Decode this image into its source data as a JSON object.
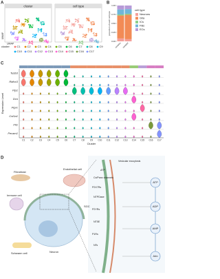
{
  "panel_a": {
    "label": "A",
    "titles": [
      "cluster",
      "cell type"
    ],
    "y_axis": "UMAP",
    "x_axis": "UMAP",
    "legend_title": "cluster",
    "clusters": [
      "C1",
      "C2",
      "C3",
      "C4",
      "C5",
      "C6",
      "C7",
      "C8",
      "C9",
      "C10",
      "C11",
      "C12",
      "C13",
      "C14",
      "C15",
      "C16",
      "C17"
    ],
    "colors": [
      "#f8766d",
      "#e58700",
      "#c99800",
      "#a3a500",
      "#6bb100",
      "#00ba38",
      "#00bf7d",
      "#00c0af",
      "#00bcd8",
      "#00b0f6",
      "#619cff",
      "#b983ff",
      "#e76bf3",
      "#fd61d1",
      "#ff67a4",
      "#7a9a3a",
      "#8494ff"
    ]
  },
  "panel_b": {
    "label": "B",
    "type": "bar",
    "y_label": "proportion of each cell type",
    "categories": [
      "sample1",
      "sample2"
    ],
    "ylim": [
      0,
      1
    ],
    "yticks": [
      {
        "value": 0,
        "label": "0.00"
      },
      {
        "value": 0.25,
        "label": "0.25"
      },
      {
        "value": 0.5,
        "label": "0.50"
      },
      {
        "value": 0.75,
        "label": "0.75"
      },
      {
        "value": 1,
        "label": "1.00"
      }
    ],
    "legend_title": "cell type",
    "series": [
      {
        "name": "Neurons",
        "color": "#f4a09a",
        "values": [
          0.08,
          0.06
        ]
      },
      {
        "name": "Glia",
        "color": "#f28b56",
        "values": [
          0.64,
          0.68
        ]
      },
      {
        "name": "ICs",
        "color": "#8fcf8a",
        "values": [
          0.03,
          0.03
        ]
      },
      {
        "name": "FBs",
        "color": "#6fb6d8",
        "values": [
          0.14,
          0.13
        ]
      },
      {
        "name": "ECs",
        "color": "#b79ad8",
        "values": [
          0.11,
          0.1
        ]
      }
    ]
  },
  "panel_c": {
    "label": "C",
    "genes": [
      "Tubb3",
      "Rbfox3",
      "Plp1",
      "Dcn",
      "Ptprc",
      "Col1a1",
      "Flt1",
      "Pecam1"
    ],
    "y_label": "Expression Level",
    "x_label": "Cluster"
  },
  "panel_d": {
    "label": "D",
    "cells": [
      "Fibroblast",
      "Endothelial cell",
      "Immune cell",
      "SGC",
      "Schwann cell",
      "Neuron"
    ],
    "receptors": [
      "Vesicular exocytosis",
      "Cx/Panx channels",
      "P2X7Rs",
      "NTPDase",
      "P2YRs",
      "NT5E",
      "P1Rs",
      "NTs"
    ],
    "membrane_atp": "ATP",
    "metabolites": [
      "ATP",
      "ADP",
      "AMP",
      "Ado"
    ]
  }
}
